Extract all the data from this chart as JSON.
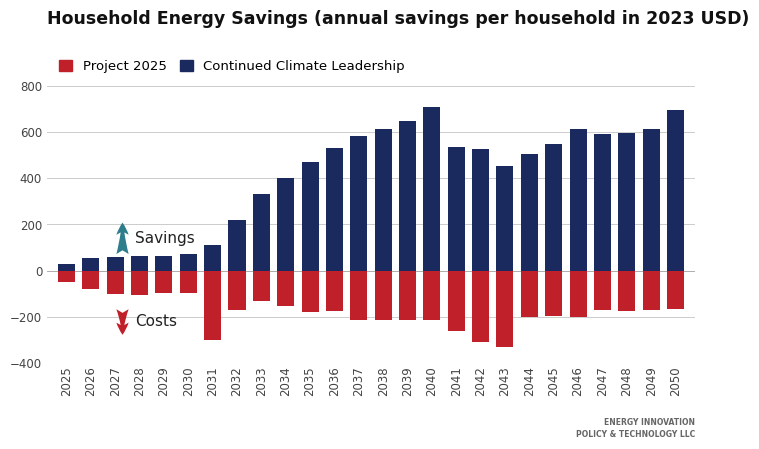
{
  "years": [
    2025,
    2026,
    2027,
    2028,
    2029,
    2030,
    2031,
    2032,
    2033,
    2034,
    2035,
    2036,
    2037,
    2038,
    2039,
    2040,
    2041,
    2042,
    2043,
    2044,
    2045,
    2046,
    2047,
    2048,
    2049,
    2050
  ],
  "blue_values": [
    30,
    55,
    60,
    65,
    65,
    70,
    110,
    220,
    330,
    400,
    470,
    530,
    585,
    615,
    650,
    710,
    535,
    525,
    455,
    505,
    550,
    615,
    590,
    595,
    615,
    695
  ],
  "red_values": [
    -50,
    -80,
    -100,
    -105,
    -95,
    -95,
    -300,
    -170,
    -130,
    -155,
    -180,
    -175,
    -215,
    -215,
    -215,
    -215,
    -260,
    -310,
    -330,
    -200,
    -195,
    -200,
    -170,
    -175,
    -170,
    -165
  ],
  "title": "Household Energy Savings (annual savings per household in 2023 USD)",
  "legend_project": "Project 2025",
  "legend_climate": "Continued Climate Leadership",
  "red_color": "#c0202a",
  "blue_color": "#1b2a5e",
  "arrow_color": "#2e7d8c",
  "ylim": [
    -400,
    800
  ],
  "yticks": [
    -400,
    -200,
    0,
    200,
    400,
    600,
    800
  ],
  "savings_text": "Savings",
  "costs_text": "Costs",
  "background_color": "#ffffff",
  "grid_color": "#cccccc",
  "title_fontsize": 12.5,
  "legend_fontsize": 9.5,
  "tick_fontsize": 8.5,
  "annotation_fontsize": 11
}
